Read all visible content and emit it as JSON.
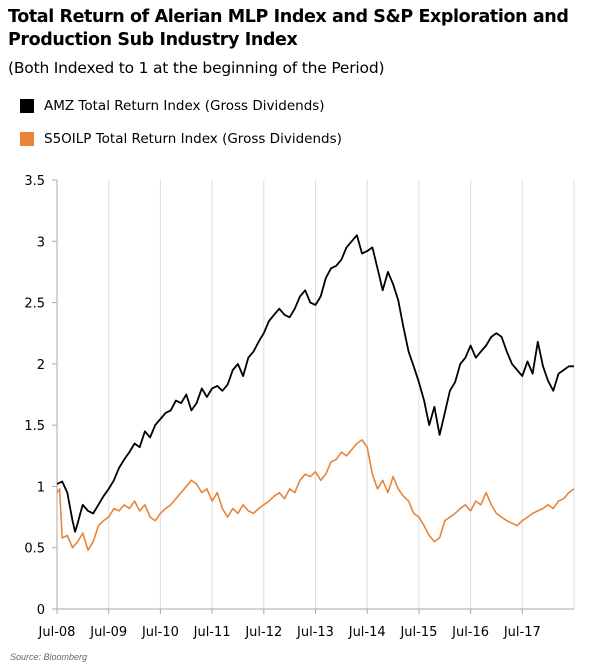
{
  "title": "Total Return of Alerian MLP Index and S&P Exploration and Production Sub Industry Index",
  "subtitle": "(Both Indexed to 1 at the beginning of the Period)",
  "source": "Source: Bloomberg",
  "colors": {
    "amz": "#000000",
    "s5oilp": "#e8853a",
    "axis": "#aaaaaa",
    "grid": "#dddddd"
  },
  "chart_data": {
    "type": "line",
    "title": "Total Return of Alerian MLP Index and S&P Exploration and Production Sub Industry Index",
    "subtitle": "(Both Indexed to 1 at the beginning of the Period)",
    "xlabel": "",
    "ylabel": "",
    "ylim": [
      0,
      3.5
    ],
    "xlim": [
      2008.5,
      2018.5
    ],
    "y_ticks": [
      0,
      0.5,
      1,
      1.5,
      2,
      2.5,
      3,
      3.5
    ],
    "y_tick_labels": [
      "0",
      "0.5",
      "1",
      "1.5",
      "2",
      "2.5",
      "3",
      "3.5"
    ],
    "x_ticks": [
      2008.5,
      2009.5,
      2010.5,
      2011.5,
      2012.5,
      2013.5,
      2014.5,
      2015.5,
      2016.5,
      2017.5
    ],
    "x_tick_labels": [
      "Jul-08",
      "Jul-09",
      "Jul-10",
      "Jul-11",
      "Jul-12",
      "Jul-13",
      "Jul-14",
      "Jul-15",
      "Jul-16",
      "Jul-17"
    ],
    "grid": "vertical",
    "legend_position": "top-left",
    "series": [
      {
        "name": "AMZ Total Return Index (Gross Dividends)",
        "color": "#000000",
        "x": [
          2008.5,
          2008.6,
          2008.7,
          2008.8,
          2008.85,
          2008.9,
          2008.95,
          2009.0,
          2009.1,
          2009.2,
          2009.3,
          2009.4,
          2009.5,
          2009.6,
          2009.7,
          2009.8,
          2009.9,
          2010.0,
          2010.1,
          2010.2,
          2010.3,
          2010.4,
          2010.5,
          2010.6,
          2010.7,
          2010.8,
          2010.9,
          2011.0,
          2011.1,
          2011.2,
          2011.3,
          2011.4,
          2011.5,
          2011.6,
          2011.7,
          2011.8,
          2011.9,
          2012.0,
          2012.1,
          2012.2,
          2012.3,
          2012.4,
          2012.5,
          2012.6,
          2012.7,
          2012.8,
          2012.9,
          2013.0,
          2013.1,
          2013.2,
          2013.3,
          2013.4,
          2013.5,
          2013.6,
          2013.7,
          2013.8,
          2013.9,
          2014.0,
          2014.1,
          2014.2,
          2014.3,
          2014.4,
          2014.5,
          2014.6,
          2014.7,
          2014.8,
          2014.9,
          2015.0,
          2015.1,
          2015.2,
          2015.3,
          2015.4,
          2015.5,
          2015.6,
          2015.7,
          2015.8,
          2015.9,
          2016.0,
          2016.1,
          2016.2,
          2016.3,
          2016.4,
          2016.5,
          2016.6,
          2016.7,
          2016.8,
          2016.9,
          2017.0,
          2017.1,
          2017.2,
          2017.3,
          2017.4,
          2017.5,
          2017.6,
          2017.7,
          2017.8,
          2017.9,
          2018.0,
          2018.1,
          2018.2,
          2018.3,
          2018.4,
          2018.5
        ],
        "y": [
          1.02,
          1.04,
          0.95,
          0.72,
          0.63,
          0.7,
          0.78,
          0.85,
          0.8,
          0.78,
          0.85,
          0.92,
          0.98,
          1.05,
          1.15,
          1.22,
          1.28,
          1.35,
          1.32,
          1.45,
          1.4,
          1.5,
          1.55,
          1.6,
          1.62,
          1.7,
          1.68,
          1.75,
          1.62,
          1.68,
          1.8,
          1.73,
          1.8,
          1.82,
          1.78,
          1.83,
          1.95,
          2.0,
          1.9,
          2.05,
          2.1,
          2.18,
          2.25,
          2.35,
          2.4,
          2.45,
          2.4,
          2.38,
          2.45,
          2.55,
          2.6,
          2.5,
          2.48,
          2.55,
          2.7,
          2.78,
          2.8,
          2.85,
          2.95,
          3.0,
          3.05,
          2.9,
          2.92,
          2.95,
          2.78,
          2.6,
          2.75,
          2.65,
          2.52,
          2.3,
          2.1,
          1.98,
          1.85,
          1.7,
          1.5,
          1.65,
          1.42,
          1.6,
          1.78,
          1.85,
          2.0,
          2.05,
          2.15,
          2.05,
          2.1,
          2.15,
          2.22,
          2.25,
          2.22,
          2.1,
          2.0,
          1.95,
          1.9,
          2.02,
          1.92,
          2.18,
          1.98,
          1.86,
          1.78,
          1.92,
          1.95,
          1.98,
          1.98
        ]
      },
      {
        "name": "S5OILP Total Return Index (Gross Dividends)",
        "color": "#e8853a",
        "x": [
          2008.5,
          2008.55,
          2008.6,
          2008.7,
          2008.8,
          2008.9,
          2009.0,
          2009.1,
          2009.2,
          2009.3,
          2009.4,
          2009.5,
          2009.6,
          2009.7,
          2009.8,
          2009.9,
          2010.0,
          2010.1,
          2010.2,
          2010.3,
          2010.4,
          2010.5,
          2010.6,
          2010.7,
          2010.8,
          2010.9,
          2011.0,
          2011.1,
          2011.2,
          2011.3,
          2011.4,
          2011.5,
          2011.6,
          2011.7,
          2011.8,
          2011.9,
          2012.0,
          2012.1,
          2012.2,
          2012.3,
          2012.4,
          2012.5,
          2012.6,
          2012.7,
          2012.8,
          2012.9,
          2013.0,
          2013.1,
          2013.2,
          2013.3,
          2013.4,
          2013.5,
          2013.6,
          2013.7,
          2013.8,
          2013.9,
          2014.0,
          2014.1,
          2014.2,
          2014.3,
          2014.4,
          2014.5,
          2014.6,
          2014.7,
          2014.8,
          2014.9,
          2015.0,
          2015.1,
          2015.2,
          2015.3,
          2015.4,
          2015.5,
          2015.6,
          2015.7,
          2015.8,
          2015.9,
          2016.0,
          2016.1,
          2016.2,
          2016.3,
          2016.4,
          2016.5,
          2016.6,
          2016.7,
          2016.8,
          2016.9,
          2017.0,
          2017.1,
          2017.2,
          2017.3,
          2017.4,
          2017.5,
          2017.6,
          2017.7,
          2017.8,
          2017.9,
          2018.0,
          2018.1,
          2018.2,
          2018.3,
          2018.4,
          2018.5
        ],
        "y": [
          0.95,
          0.98,
          0.58,
          0.6,
          0.5,
          0.55,
          0.62,
          0.48,
          0.55,
          0.68,
          0.72,
          0.75,
          0.82,
          0.8,
          0.85,
          0.82,
          0.88,
          0.8,
          0.85,
          0.75,
          0.72,
          0.78,
          0.82,
          0.85,
          0.9,
          0.95,
          1.0,
          1.05,
          1.02,
          0.95,
          0.98,
          0.88,
          0.95,
          0.82,
          0.75,
          0.82,
          0.78,
          0.85,
          0.8,
          0.78,
          0.82,
          0.85,
          0.88,
          0.92,
          0.95,
          0.9,
          0.98,
          0.95,
          1.05,
          1.1,
          1.08,
          1.12,
          1.05,
          1.1,
          1.2,
          1.22,
          1.28,
          1.25,
          1.3,
          1.35,
          1.38,
          1.32,
          1.1,
          0.98,
          1.05,
          0.95,
          1.08,
          0.98,
          0.92,
          0.88,
          0.78,
          0.75,
          0.68,
          0.6,
          0.55,
          0.58,
          0.72,
          0.75,
          0.78,
          0.82,
          0.85,
          0.8,
          0.88,
          0.85,
          0.95,
          0.85,
          0.78,
          0.75,
          0.72,
          0.7,
          0.68,
          0.72,
          0.75,
          0.78,
          0.8,
          0.82,
          0.85,
          0.82,
          0.88,
          0.9,
          0.95,
          0.98
        ]
      }
    ]
  }
}
